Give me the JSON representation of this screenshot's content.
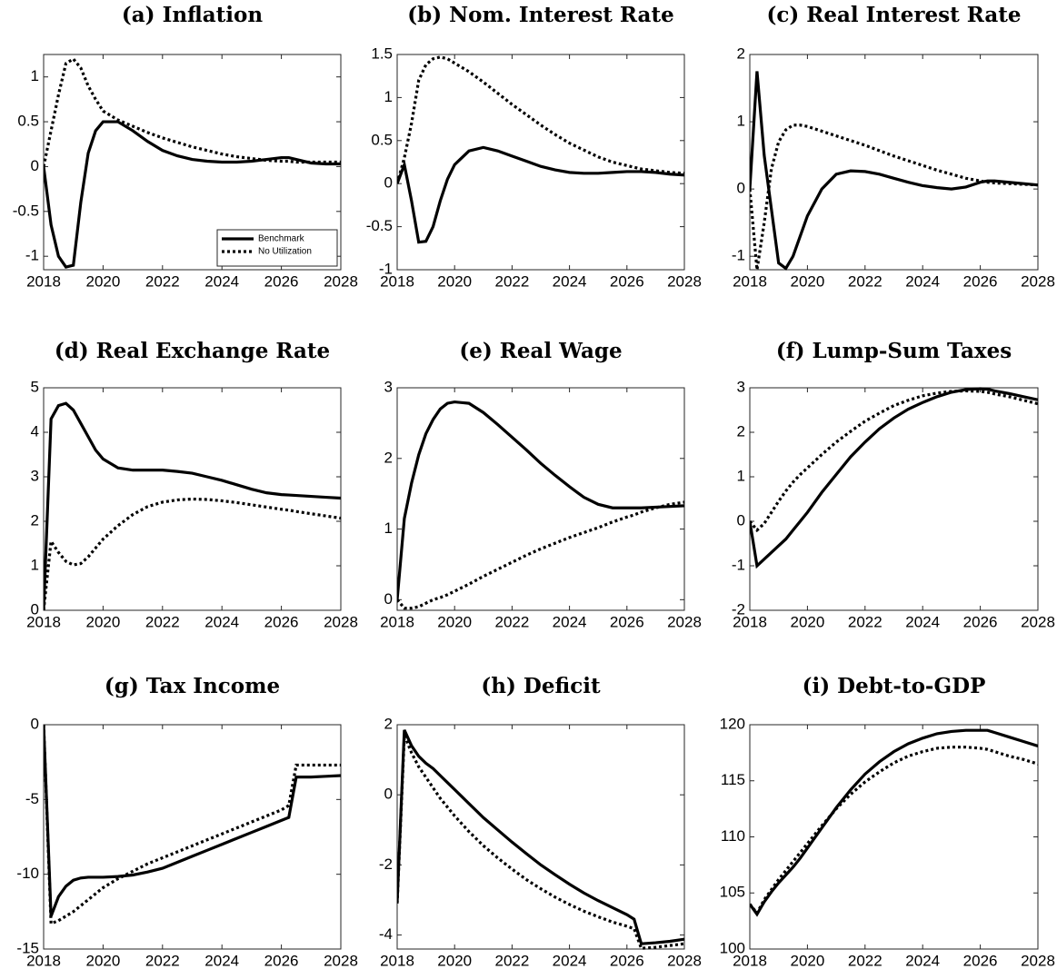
{
  "chart_data": [
    {
      "type": "line",
      "title": "(a) Inflation",
      "x": [
        2018,
        2018.25,
        2018.5,
        2018.75,
        2019,
        2019.25,
        2019.5,
        2019.75,
        2020,
        2020.5,
        2021,
        2021.5,
        2022,
        2022.5,
        2023,
        2023.5,
        2024,
        2024.5,
        2025,
        2025.5,
        2026,
        2026.25,
        2026.5,
        2027,
        2027.5,
        2028
      ],
      "xlim": [
        2018,
        2028
      ],
      "xticks": [
        2018,
        2020,
        2022,
        2024,
        2026,
        2028
      ],
      "ylim": [
        -1.15,
        1.25
      ],
      "yticks": [
        -1,
        -0.5,
        0,
        0.5,
        1
      ],
      "legend": "lower right",
      "series": [
        {
          "name": "Benchmark",
          "color": "#000000",
          "style": "solid",
          "values": [
            0,
            -0.65,
            -1.0,
            -1.12,
            -1.1,
            -0.4,
            0.15,
            0.4,
            0.5,
            0.5,
            0.4,
            0.28,
            0.18,
            0.12,
            0.08,
            0.06,
            0.05,
            0.05,
            0.06,
            0.08,
            0.1,
            0.1,
            0.08,
            0.04,
            0.03,
            0.03
          ]
        },
        {
          "name": "No Utilization",
          "color": "#000000",
          "style": "dotted",
          "values": [
            0,
            0.4,
            0.8,
            1.15,
            1.2,
            1.1,
            0.9,
            0.75,
            0.62,
            0.52,
            0.45,
            0.38,
            0.32,
            0.27,
            0.22,
            0.18,
            0.14,
            0.11,
            0.09,
            0.07,
            0.06,
            0.06,
            0.05,
            0.05,
            0.05,
            0.05
          ]
        }
      ]
    },
    {
      "type": "line",
      "title": "(b) Nom. Interest Rate",
      "x": [
        2018,
        2018.25,
        2018.5,
        2018.75,
        2019,
        2019.25,
        2019.5,
        2019.75,
        2020,
        2020.5,
        2021,
        2021.5,
        2022,
        2022.5,
        2023,
        2023.5,
        2024,
        2024.5,
        2025,
        2025.5,
        2026,
        2026.25,
        2026.5,
        2027,
        2027.5,
        2028
      ],
      "xlim": [
        2018,
        2028
      ],
      "xticks": [
        2018,
        2020,
        2022,
        2024,
        2026,
        2028
      ],
      "ylim": [
        -1,
        1.5
      ],
      "yticks": [
        -1,
        -0.5,
        0,
        0.5,
        1,
        1.5
      ],
      "series": [
        {
          "color": "#000000",
          "style": "solid",
          "values": [
            0,
            0.22,
            -0.2,
            -0.68,
            -0.67,
            -0.5,
            -0.2,
            0.05,
            0.22,
            0.38,
            0.42,
            0.38,
            0.32,
            0.26,
            0.2,
            0.16,
            0.13,
            0.12,
            0.12,
            0.13,
            0.14,
            0.14,
            0.14,
            0.13,
            0.11,
            0.1
          ]
        },
        {
          "color": "#000000",
          "style": "dotted",
          "values": [
            0,
            0.3,
            0.7,
            1.2,
            1.38,
            1.45,
            1.47,
            1.45,
            1.4,
            1.3,
            1.18,
            1.05,
            0.92,
            0.8,
            0.68,
            0.57,
            0.47,
            0.39,
            0.31,
            0.25,
            0.21,
            0.19,
            0.17,
            0.15,
            0.13,
            0.12
          ]
        }
      ]
    },
    {
      "type": "line",
      "title": "(c) Real Interest Rate",
      "x": [
        2018,
        2018.25,
        2018.5,
        2018.75,
        2019,
        2019.25,
        2019.5,
        2019.75,
        2020,
        2020.5,
        2021,
        2021.5,
        2022,
        2022.5,
        2023,
        2023.5,
        2024,
        2024.5,
        2025,
        2025.5,
        2026,
        2026.25,
        2026.5,
        2027,
        2027.5,
        2028
      ],
      "xlim": [
        2018,
        2028
      ],
      "xticks": [
        2018,
        2020,
        2022,
        2024,
        2026,
        2028
      ],
      "ylim": [
        -1.2,
        2
      ],
      "yticks": [
        -1,
        0,
        1,
        2
      ],
      "series": [
        {
          "color": "#000000",
          "style": "solid",
          "values": [
            0,
            1.75,
            0.5,
            -0.3,
            -1.1,
            -1.18,
            -1.0,
            -0.7,
            -0.4,
            0.0,
            0.22,
            0.27,
            0.26,
            0.22,
            0.16,
            0.1,
            0.05,
            0.02,
            0.0,
            0.03,
            0.1,
            0.12,
            0.12,
            0.1,
            0.08,
            0.06
          ]
        },
        {
          "color": "#000000",
          "style": "dotted",
          "values": [
            0,
            -1.2,
            -0.5,
            0.3,
            0.7,
            0.88,
            0.95,
            0.95,
            0.93,
            0.86,
            0.79,
            0.72,
            0.65,
            0.57,
            0.49,
            0.42,
            0.35,
            0.28,
            0.22,
            0.16,
            0.12,
            0.1,
            0.09,
            0.08,
            0.07,
            0.06
          ]
        }
      ]
    },
    {
      "type": "line",
      "title": "(d) Real Exchange Rate",
      "x": [
        2018,
        2018.25,
        2018.5,
        2018.75,
        2019,
        2019.25,
        2019.5,
        2019.75,
        2020,
        2020.5,
        2021,
        2021.5,
        2022,
        2022.5,
        2023,
        2023.5,
        2024,
        2024.5,
        2025,
        2025.5,
        2026,
        2026.25,
        2026.5,
        2027,
        2027.5,
        2028
      ],
      "xlim": [
        2018,
        2028
      ],
      "xticks": [
        2018,
        2020,
        2022,
        2024,
        2026,
        2028
      ],
      "ylim": [
        0,
        5
      ],
      "yticks": [
        0,
        1,
        2,
        3,
        4,
        5
      ],
      "series": [
        {
          "color": "#000000",
          "style": "solid",
          "values": [
            0,
            4.3,
            4.6,
            4.65,
            4.5,
            4.2,
            3.9,
            3.6,
            3.4,
            3.2,
            3.15,
            3.15,
            3.15,
            3.12,
            3.08,
            3.0,
            2.92,
            2.82,
            2.72,
            2.64,
            2.6,
            2.59,
            2.58,
            2.56,
            2.54,
            2.52
          ]
        },
        {
          "color": "#000000",
          "style": "dotted",
          "values": [
            0,
            1.55,
            1.3,
            1.1,
            1.02,
            1.05,
            1.2,
            1.4,
            1.6,
            1.9,
            2.15,
            2.33,
            2.43,
            2.48,
            2.5,
            2.49,
            2.46,
            2.42,
            2.37,
            2.32,
            2.27,
            2.25,
            2.22,
            2.17,
            2.12,
            2.07
          ]
        }
      ]
    },
    {
      "type": "line",
      "title": "(e) Real Wage",
      "x": [
        2018,
        2018.25,
        2018.5,
        2018.75,
        2019,
        2019.25,
        2019.5,
        2019.75,
        2020,
        2020.5,
        2021,
        2021.5,
        2022,
        2022.5,
        2023,
        2023.5,
        2024,
        2024.5,
        2025,
        2025.5,
        2026,
        2026.25,
        2026.5,
        2027,
        2027.5,
        2028
      ],
      "xlim": [
        2018,
        2028
      ],
      "xticks": [
        2018,
        2020,
        2022,
        2024,
        2026,
        2028
      ],
      "ylim": [
        -0.15,
        3
      ],
      "yticks": [
        0,
        1,
        2,
        3
      ],
      "series": [
        {
          "color": "#000000",
          "style": "solid",
          "values": [
            0,
            1.15,
            1.65,
            2.05,
            2.35,
            2.55,
            2.7,
            2.78,
            2.8,
            2.78,
            2.65,
            2.48,
            2.3,
            2.12,
            1.93,
            1.76,
            1.6,
            1.45,
            1.35,
            1.3,
            1.3,
            1.3,
            1.3,
            1.31,
            1.32,
            1.33
          ]
        },
        {
          "color": "#000000",
          "style": "dotted",
          "values": [
            0,
            -0.12,
            -0.12,
            -0.1,
            -0.05,
            0.0,
            0.03,
            0.07,
            0.12,
            0.22,
            0.33,
            0.43,
            0.53,
            0.63,
            0.72,
            0.8,
            0.88,
            0.95,
            1.02,
            1.1,
            1.17,
            1.2,
            1.24,
            1.3,
            1.35,
            1.38
          ]
        }
      ]
    },
    {
      "type": "line",
      "title": "(f) Lump-Sum Taxes",
      "x": [
        2018,
        2018.25,
        2018.5,
        2018.75,
        2019,
        2019.25,
        2019.5,
        2019.75,
        2020,
        2020.5,
        2021,
        2021.5,
        2022,
        2022.5,
        2023,
        2023.5,
        2024,
        2024.5,
        2025,
        2025.5,
        2026,
        2026.25,
        2026.5,
        2027,
        2027.5,
        2028
      ],
      "xlim": [
        2018,
        2028
      ],
      "xticks": [
        2018,
        2020,
        2022,
        2024,
        2026,
        2028
      ],
      "ylim": [
        -2,
        3
      ],
      "yticks": [
        -2,
        -1,
        0,
        1,
        2,
        3
      ],
      "series": [
        {
          "color": "#000000",
          "style": "solid",
          "values": [
            0,
            -1.0,
            -0.85,
            -0.7,
            -0.55,
            -0.4,
            -0.2,
            0.0,
            0.2,
            0.65,
            1.05,
            1.45,
            1.78,
            2.08,
            2.32,
            2.52,
            2.67,
            2.8,
            2.9,
            2.96,
            2.98,
            2.97,
            2.93,
            2.87,
            2.8,
            2.73
          ]
        },
        {
          "color": "#000000",
          "style": "dotted",
          "values": [
            0,
            -0.2,
            -0.05,
            0.2,
            0.45,
            0.68,
            0.88,
            1.05,
            1.2,
            1.5,
            1.78,
            2.02,
            2.25,
            2.43,
            2.6,
            2.72,
            2.82,
            2.88,
            2.92,
            2.93,
            2.92,
            2.9,
            2.86,
            2.8,
            2.72,
            2.64
          ]
        }
      ]
    },
    {
      "type": "line",
      "title": "(g) Tax Income",
      "x": [
        2018,
        2018.25,
        2018.5,
        2018.75,
        2019,
        2019.25,
        2019.5,
        2019.75,
        2020,
        2020.5,
        2021,
        2021.5,
        2022,
        2022.5,
        2023,
        2023.5,
        2024,
        2024.5,
        2025,
        2025.5,
        2026,
        2026.25,
        2026.5,
        2027,
        2027.5,
        2028
      ],
      "xlim": [
        2018,
        2028
      ],
      "xticks": [
        2018,
        2020,
        2022,
        2024,
        2026,
        2028
      ],
      "ylim": [
        -15,
        0
      ],
      "yticks": [
        -15,
        -10,
        -5,
        0
      ],
      "series": [
        {
          "color": "#000000",
          "style": "solid",
          "values": [
            0,
            -12.8,
            -11.5,
            -10.8,
            -10.4,
            -10.25,
            -10.2,
            -10.2,
            -10.2,
            -10.15,
            -10.05,
            -9.85,
            -9.6,
            -9.2,
            -8.8,
            -8.4,
            -8.0,
            -7.6,
            -7.2,
            -6.8,
            -6.4,
            -6.2,
            -3.5,
            -3.5,
            -3.45,
            -3.4
          ]
        },
        {
          "color": "#000000",
          "style": "dotted",
          "values": [
            0,
            -13.3,
            -13.1,
            -12.8,
            -12.5,
            -12.1,
            -11.7,
            -11.3,
            -10.9,
            -10.3,
            -9.8,
            -9.3,
            -8.9,
            -8.5,
            -8.1,
            -7.7,
            -7.3,
            -6.9,
            -6.5,
            -6.1,
            -5.7,
            -5.4,
            -2.7,
            -2.7,
            -2.7,
            -2.7
          ]
        }
      ]
    },
    {
      "type": "line",
      "title": "(h) Deficit",
      "x": [
        2018,
        2018.25,
        2018.5,
        2018.75,
        2019,
        2019.25,
        2019.5,
        2019.75,
        2020,
        2020.5,
        2021,
        2021.5,
        2022,
        2022.5,
        2023,
        2023.5,
        2024,
        2024.5,
        2025,
        2025.5,
        2026,
        2026.25,
        2026.5,
        2027,
        2027.5,
        2028
      ],
      "xlim": [
        2018,
        2028
      ],
      "xticks": [
        2018,
        2020,
        2022,
        2024,
        2026,
        2028
      ],
      "ylim": [
        -4.4,
        2
      ],
      "yticks": [
        -4,
        -2,
        0,
        2
      ],
      "series": [
        {
          "color": "#000000",
          "style": "solid",
          "values": [
            -3.05,
            1.85,
            1.4,
            1.1,
            0.9,
            0.75,
            0.55,
            0.35,
            0.15,
            -0.25,
            -0.65,
            -1.0,
            -1.35,
            -1.68,
            -2.0,
            -2.28,
            -2.55,
            -2.8,
            -3.02,
            -3.22,
            -3.42,
            -3.55,
            -4.25,
            -4.22,
            -4.18,
            -4.12
          ]
        },
        {
          "color": "#000000",
          "style": "dotted",
          "values": [
            -3.1,
            1.7,
            1.2,
            0.8,
            0.5,
            0.2,
            -0.1,
            -0.35,
            -0.6,
            -1.05,
            -1.45,
            -1.8,
            -2.12,
            -2.42,
            -2.68,
            -2.92,
            -3.13,
            -3.32,
            -3.48,
            -3.63,
            -3.75,
            -3.82,
            -4.38,
            -4.35,
            -4.3,
            -4.25
          ]
        }
      ]
    },
    {
      "type": "line",
      "title": "(i) Debt-to-GDP",
      "x": [
        2018,
        2018.25,
        2018.5,
        2018.75,
        2019,
        2019.25,
        2019.5,
        2019.75,
        2020,
        2020.5,
        2021,
        2021.5,
        2022,
        2022.5,
        2023,
        2023.5,
        2024,
        2024.5,
        2025,
        2025.5,
        2026,
        2026.25,
        2026.5,
        2027,
        2027.5,
        2028
      ],
      "xlim": [
        2018,
        2028
      ],
      "xticks": [
        2018,
        2020,
        2022,
        2024,
        2026,
        2028
      ],
      "ylim": [
        100,
        120
      ],
      "yticks": [
        100,
        105,
        110,
        115,
        120
      ],
      "series": [
        {
          "color": "#000000",
          "style": "solid",
          "values": [
            104,
            103.1,
            104.2,
            105.1,
            105.9,
            106.6,
            107.3,
            108.1,
            109.0,
            110.8,
            112.6,
            114.2,
            115.6,
            116.7,
            117.6,
            118.3,
            118.8,
            119.2,
            119.4,
            119.5,
            119.5,
            119.5,
            119.3,
            118.9,
            118.5,
            118.1
          ]
        },
        {
          "color": "#000000",
          "style": "dotted",
          "values": [
            104,
            103.2,
            104.4,
            105.3,
            106.2,
            107.0,
            107.8,
            108.6,
            109.4,
            111.0,
            112.5,
            113.8,
            114.9,
            115.8,
            116.6,
            117.2,
            117.6,
            117.9,
            118.0,
            118.0,
            117.9,
            117.8,
            117.6,
            117.2,
            116.9,
            116.5
          ]
        }
      ]
    }
  ]
}
